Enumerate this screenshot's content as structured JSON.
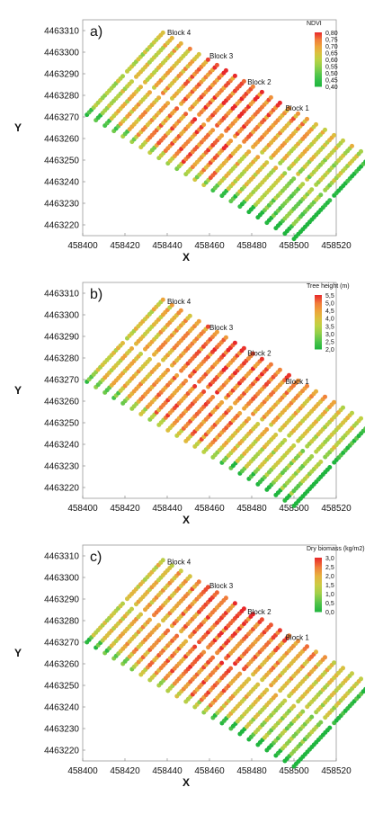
{
  "chart_data": [
    {
      "type": "scatter",
      "panel_label": "a)",
      "xlabel": "X",
      "ylabel": "Y",
      "xlim": [
        458400,
        458520
      ],
      "ylim": [
        4463215,
        4463315
      ],
      "x_ticks": [
        "458400",
        "458420",
        "458440",
        "458460",
        "458480",
        "458500",
        "458520"
      ],
      "y_ticks": [
        "4463220",
        "4463230",
        "4463240",
        "4463250",
        "4463260",
        "4463270",
        "4463280",
        "4463290",
        "4463300",
        "4463310"
      ],
      "legend": {
        "title": "NDVI",
        "placement": "top-right",
        "labels": [
          "0,80",
          "0,75",
          "0,70",
          "0,65",
          "0,60",
          "0,55",
          "0,50",
          "0,45",
          "0,40"
        ],
        "colors": [
          "#e8282a",
          "#f07a3a",
          "#eea23a",
          "#dcc03e",
          "#bcd244",
          "#93d04a",
          "#5fc84c",
          "#35bf48",
          "#1fb53e"
        ]
      },
      "annotations": [
        {
          "text": "Block 4",
          "x": 458440,
          "y": 4463308
        },
        {
          "text": "Block 3",
          "x": 458460,
          "y": 4463297
        },
        {
          "text": "Block 2",
          "x": 458478,
          "y": 4463285
        },
        {
          "text": "Block 1",
          "x": 458496,
          "y": 4463273
        }
      ],
      "rows": {
        "count": 24,
        "start": [
          458402,
          4463271
        ],
        "end": [
          458438,
          4463309
        ],
        "step": [
          4.26,
          -2.5
        ]
      },
      "value_range": [
        0.4,
        0.8
      ],
      "value_profile": "orange-red concentrated in the upper-middle rows and central block; green along the south-west edge"
    },
    {
      "type": "scatter",
      "panel_label": "b)",
      "xlabel": "X",
      "ylabel": "Y",
      "xlim": [
        458400,
        458520
      ],
      "ylim": [
        4463215,
        4463315
      ],
      "x_ticks": [
        "458400",
        "458420",
        "458440",
        "458460",
        "458480",
        "458500",
        "458520"
      ],
      "y_ticks": [
        "4463220",
        "4463230",
        "4463240",
        "4463250",
        "4463260",
        "4463270",
        "4463280",
        "4463290",
        "4463300",
        "4463310"
      ],
      "legend": {
        "title": "Tree height (m)",
        "placement": "top-right",
        "labels": [
          "5,5",
          "5,0",
          "4,5",
          "4,0",
          "3,5",
          "3,0",
          "2,5",
          "2,0"
        ],
        "colors": [
          "#e8282a",
          "#f07a3a",
          "#eea23a",
          "#dcc03e",
          "#bcd244",
          "#8ecf4a",
          "#4fc44a",
          "#1fb53e"
        ]
      },
      "annotations": [
        {
          "text": "Block 4",
          "x": 458440,
          "y": 4463305
        },
        {
          "text": "Block 3",
          "x": 458460,
          "y": 4463293
        },
        {
          "text": "Block 2",
          "x": 458478,
          "y": 4463281
        },
        {
          "text": "Block 1",
          "x": 458496,
          "y": 4463268
        }
      ],
      "rows": {
        "count": 24,
        "start": [
          458402,
          4463271
        ],
        "end": [
          458438,
          4463309
        ],
        "step": [
          4.26,
          -2.5
        ]
      },
      "value_range": [
        2.0,
        5.5
      ],
      "value_profile": "tallest trees (red) in blocks 3 and 4 centre; green rows along the south-west edge"
    },
    {
      "type": "scatter",
      "panel_label": "c)",
      "xlabel": "X",
      "ylabel": "Y",
      "xlim": [
        458400,
        458520
      ],
      "ylim": [
        4463215,
        4463315
      ],
      "x_ticks": [
        "458400",
        "458420",
        "458440",
        "458460",
        "458480",
        "458500",
        "458520"
      ],
      "y_ticks": [
        "4463220",
        "4463230",
        "4463240",
        "4463250",
        "4463260",
        "4463270",
        "4463280",
        "4463290",
        "4463300",
        "4463310"
      ],
      "legend": {
        "title": "Dry biomass (kg/m2)",
        "placement": "top-right",
        "labels": [
          "3,0",
          "2,5",
          "2,0",
          "1,5",
          "1,0",
          "0,5",
          "0,0"
        ],
        "colors": [
          "#e8282a",
          "#f07a3a",
          "#e6b23e",
          "#cccc44",
          "#9fd04a",
          "#55c44a",
          "#1fb53e"
        ]
      },
      "annotations": [
        {
          "text": "Block 4",
          "x": 458440,
          "y": 4463306
        },
        {
          "text": "Block 3",
          "x": 458460,
          "y": 4463295
        },
        {
          "text": "Block 2",
          "x": 458478,
          "y": 4463283
        },
        {
          "text": "Block 1",
          "x": 458496,
          "y": 4463271
        }
      ],
      "rows": {
        "count": 24,
        "start": [
          458402,
          4463271
        ],
        "end": [
          458438,
          4463309
        ],
        "step": [
          4.26,
          -2.5
        ]
      },
      "value_range": [
        0.0,
        3.0
      ],
      "value_profile": "mostly yellow-green, scattered red patches in blocks 3 and 4; green along the south-west edge"
    }
  ]
}
